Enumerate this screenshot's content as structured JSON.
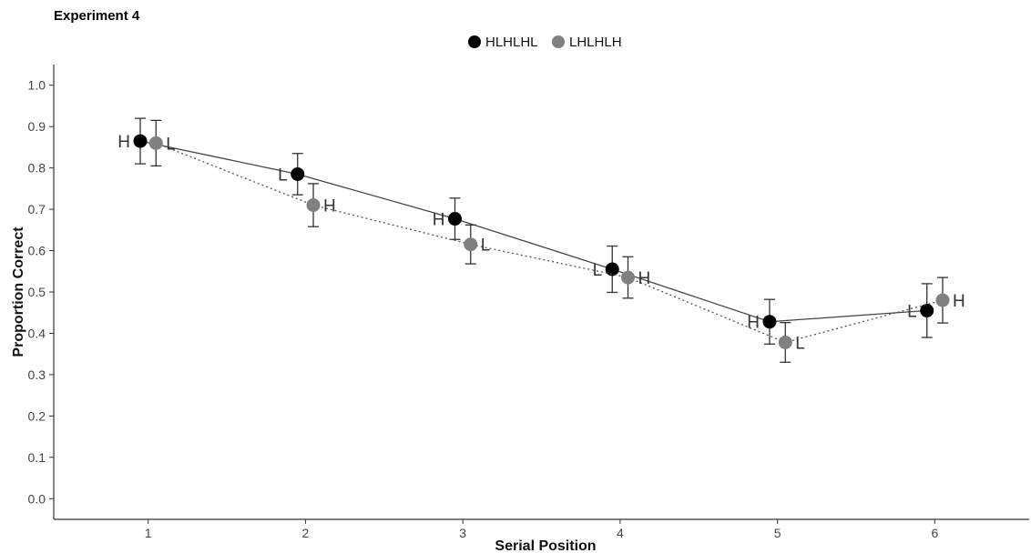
{
  "chart_data": {
    "type": "line",
    "title": "Experiment 4",
    "xlabel": "Serial Position",
    "ylabel": "Proportion Correct",
    "xlim": [
      0.4,
      6.6
    ],
    "ylim": [
      -0.05,
      1.05
    ],
    "x_ticks": [
      "1",
      "2",
      "3",
      "4",
      "5",
      "6"
    ],
    "y_ticks": [
      "0.0",
      "0.1",
      "0.2",
      "0.3",
      "0.4",
      "0.5",
      "0.6",
      "0.7",
      "0.8",
      "0.9",
      "1.0"
    ],
    "grid": false,
    "legend_position": "top",
    "series": [
      {
        "name": "HLHLHL",
        "color": "#000000",
        "line_style": "solid",
        "x": [
          1,
          2,
          3,
          4,
          5,
          6
        ],
        "y": [
          0.865,
          0.785,
          0.677,
          0.555,
          0.428,
          0.455
        ],
        "error": [
          0.055,
          0.05,
          0.05,
          0.056,
          0.054,
          0.065
        ],
        "point_labels": [
          "H",
          "L",
          "H",
          "L",
          "H",
          "L"
        ]
      },
      {
        "name": "LHLHLH",
        "color": "#808080",
        "line_style": "dotted",
        "x": [
          1,
          2,
          3,
          4,
          5,
          6
        ],
        "y": [
          0.86,
          0.71,
          0.615,
          0.535,
          0.378,
          0.48
        ],
        "error": [
          0.055,
          0.052,
          0.047,
          0.05,
          0.048,
          0.055
        ],
        "point_labels": [
          "L",
          "H",
          "L",
          "H",
          "L",
          "H"
        ]
      }
    ]
  }
}
